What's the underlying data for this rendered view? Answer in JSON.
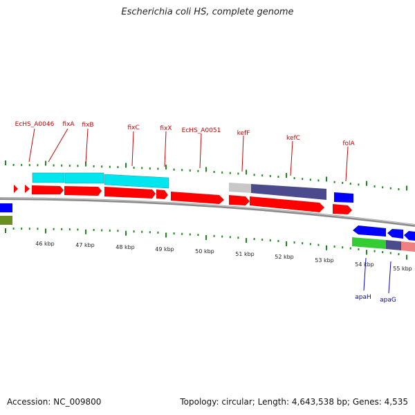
{
  "title": "Escherichia coli HS, complete genome",
  "footer": {
    "accession": "Accession: NC_009800",
    "summary": "Topology: circular; Length: 4,643,538 bp; Genes: 4,535"
  },
  "colors": {
    "background": "#ffffff",
    "backbone": "#8a8a8a",
    "tick": "#1a8a1a",
    "gene_label_top": "#cc0000",
    "gene_label_bottom": "#0000cc",
    "forward_cds": "#ff0000",
    "reverse_cds": "#0000ff",
    "operon": "#00e5ee",
    "kef": "#4a4a8c",
    "grey": "#c8c8c8",
    "green": "#33cc33",
    "pink": "#f08080",
    "olive": "#6b8e23"
  },
  "axis_labels": [
    "46 kbp",
    "47 kbp",
    "48 kbp",
    "49 kbp",
    "50 kbp",
    "51 kbp",
    "52 kbp",
    "53 kbp",
    "54 kbp",
    "55 kbp"
  ],
  "gene_labels_top": [
    "EcHS_A0046",
    "fixA",
    "fixB",
    "fixC",
    "fixX",
    "EcHS_A0051",
    "kefF",
    "kefC",
    "folA"
  ],
  "gene_labels_bottom": [
    "apaH",
    "apaG"
  ]
}
